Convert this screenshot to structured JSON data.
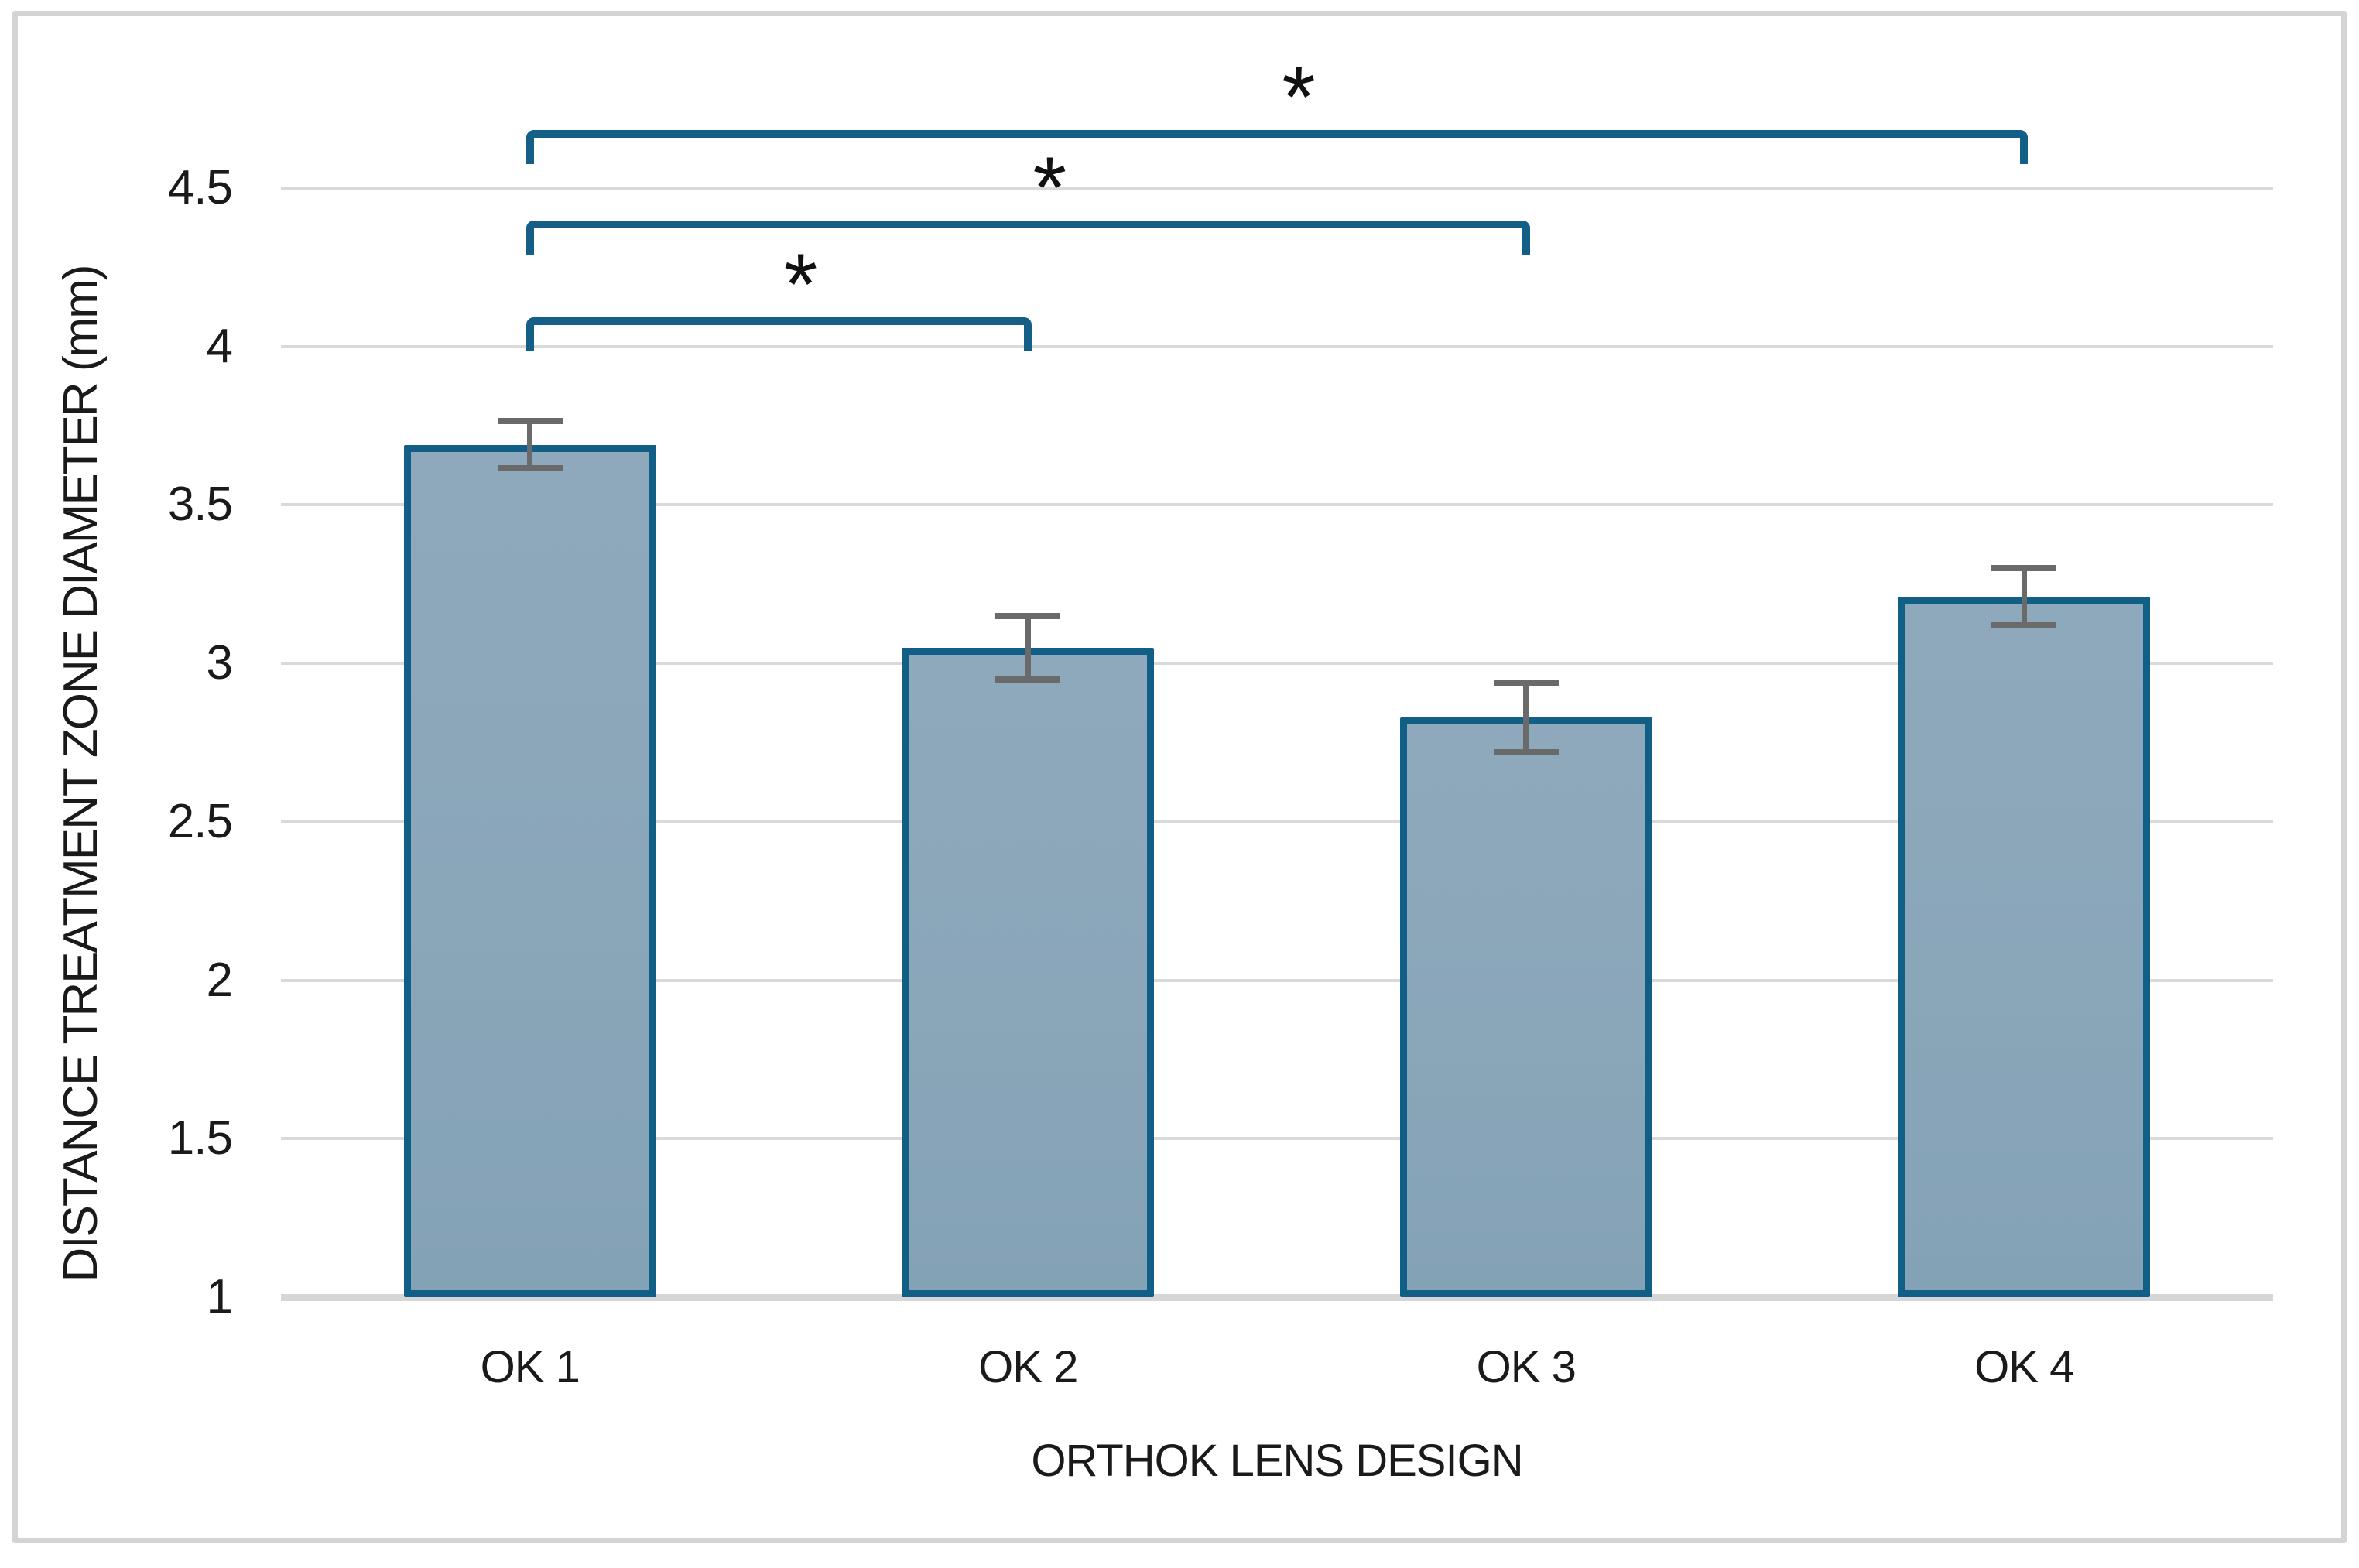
{
  "chart_data": {
    "type": "bar",
    "title": "",
    "categories": [
      "OK 1",
      "OK 2",
      "OK 3",
      "OK 4"
    ],
    "values": [
      3.69,
      3.05,
      2.83,
      3.21
    ],
    "error_bars": [
      0.075,
      0.1,
      0.11,
      0.09
    ],
    "xlabel": "ORTHOK LENS DESIGN",
    "ylabel": "DISTANCE TREATMENT ZONE DIAMETER (mm)",
    "ylim": [
      1,
      4.5
    ],
    "ytick_step": 0.5,
    "yticks": [
      "4.5",
      "4",
      "3.5",
      "3",
      "2.5",
      "2",
      "1.5",
      "1"
    ],
    "grid": "horizontal-only",
    "legend": "none",
    "bar_fill_color": "#8aa5b8",
    "bar_border_color": "#115e86",
    "bracket_color": "#135f88",
    "error_bar_color": "#6a6a6a",
    "gridline_color": "#d9d9d9",
    "figure_border_color": "#d4d4d4",
    "significance_brackets": [
      {
        "from": "OK 1",
        "to": "OK 2",
        "label": "*"
      },
      {
        "from": "OK 1",
        "to": "OK 3",
        "label": "*"
      },
      {
        "from": "OK 1",
        "to": "OK 4",
        "label": "*"
      }
    ]
  }
}
